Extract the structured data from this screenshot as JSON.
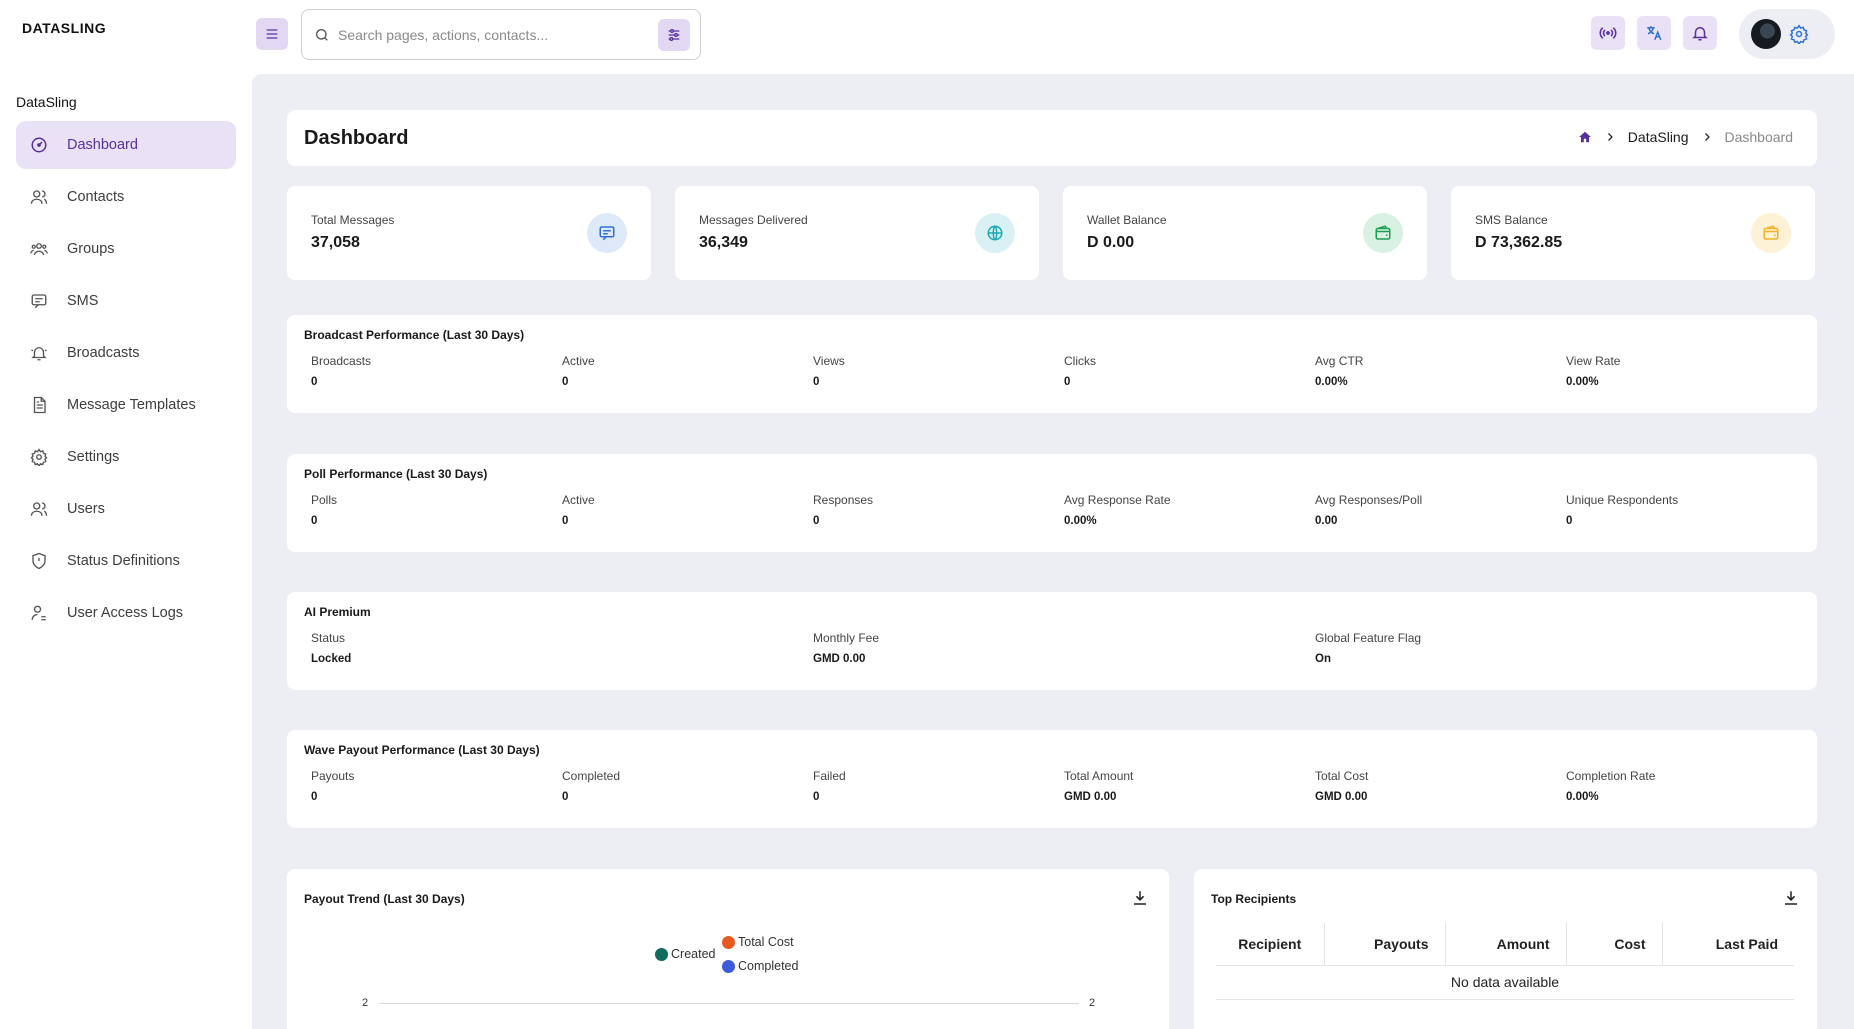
{
  "app": {
    "logo": "DATASLING",
    "org_label": "DataSling"
  },
  "sidebar": {
    "items": [
      {
        "label": "Dashboard",
        "icon": "dashboard-icon",
        "active": true
      },
      {
        "label": "Contacts",
        "icon": "contacts-icon"
      },
      {
        "label": "Groups",
        "icon": "groups-icon"
      },
      {
        "label": "SMS",
        "icon": "sms-icon"
      },
      {
        "label": "Broadcasts",
        "icon": "broadcast-icon"
      },
      {
        "label": "Message Templates",
        "icon": "document-icon"
      },
      {
        "label": "Settings",
        "icon": "gear-icon"
      },
      {
        "label": "Users",
        "icon": "users-icon"
      },
      {
        "label": "Status Definitions",
        "icon": "shield-icon"
      },
      {
        "label": "User Access Logs",
        "icon": "user-log-icon"
      }
    ]
  },
  "topbar": {
    "search_placeholder": "Search pages, actions, contacts...",
    "accent": "#5a2fa0",
    "accent_bg": "#e9e1f5"
  },
  "header": {
    "title": "Dashboard",
    "breadcrumb": [
      "DataSling",
      "Dashboard"
    ]
  },
  "stats": [
    {
      "label": "Total Messages",
      "value": "37,058",
      "icon": "message-icon",
      "color": "#2f6fd6",
      "bg": "#dde8f8"
    },
    {
      "label": "Messages Delivered",
      "value": "36,349",
      "icon": "globe-icon",
      "color": "#1aa7b8",
      "bg": "#d9f1f4"
    },
    {
      "label": "Wallet Balance",
      "value": "D 0.00",
      "icon": "wallet-icon",
      "color": "#1f9d55",
      "bg": "#d8f1e2"
    },
    {
      "label": "SMS Balance",
      "value": "D 73,362.85",
      "icon": "wallet-icon",
      "color": "#f0b429",
      "bg": "#fdf1d6"
    }
  ],
  "broadcast": {
    "title": "Broadcast Performance (Last 30 Days)",
    "cells": [
      {
        "label": "Broadcasts",
        "value": "0"
      },
      {
        "label": "Active",
        "value": "0"
      },
      {
        "label": "Views",
        "value": "0"
      },
      {
        "label": "Clicks",
        "value": "0"
      },
      {
        "label": "Avg CTR",
        "value": "0.00%"
      },
      {
        "label": "View Rate",
        "value": "0.00%"
      }
    ]
  },
  "poll": {
    "title": "Poll Performance (Last 30 Days)",
    "cells": [
      {
        "label": "Polls",
        "value": "0"
      },
      {
        "label": "Active",
        "value": "0"
      },
      {
        "label": "Responses",
        "value": "0"
      },
      {
        "label": "Avg Response Rate",
        "value": "0.00%"
      },
      {
        "label": "Avg Responses/Poll",
        "value": "0.00"
      },
      {
        "label": "Unique Respondents",
        "value": "0"
      }
    ]
  },
  "ai": {
    "title": "AI Premium",
    "cells": [
      {
        "label": "Status",
        "value": "Locked"
      },
      {
        "label": "Monthly Fee",
        "value": "GMD 0.00"
      },
      {
        "label": "Global Feature Flag",
        "value": "On"
      }
    ]
  },
  "wave": {
    "title": "Wave Payout Performance (Last 30 Days)",
    "cells": [
      {
        "label": "Payouts",
        "value": "0"
      },
      {
        "label": "Completed",
        "value": "0"
      },
      {
        "label": "Failed",
        "value": "0"
      },
      {
        "label": "Total Amount",
        "value": "GMD 0.00"
      },
      {
        "label": "Total Cost",
        "value": "GMD 0.00"
      },
      {
        "label": "Completion Rate",
        "value": "0.00%"
      }
    ]
  },
  "trend": {
    "title": "Payout Trend (Last 30 Days)",
    "legend": [
      {
        "name": "Created",
        "color": "#0f6b5c"
      },
      {
        "name": "Total Cost",
        "color": "#e8591f"
      },
      {
        "name": "Completed",
        "color": "#3b5bdb"
      }
    ],
    "y_left_tick": "2",
    "y_right_tick": "2"
  },
  "recipients": {
    "title": "Top Recipients",
    "columns": [
      "Recipient",
      "Payouts",
      "Amount",
      "Cost",
      "Last Paid"
    ],
    "empty_text": "No data available"
  }
}
